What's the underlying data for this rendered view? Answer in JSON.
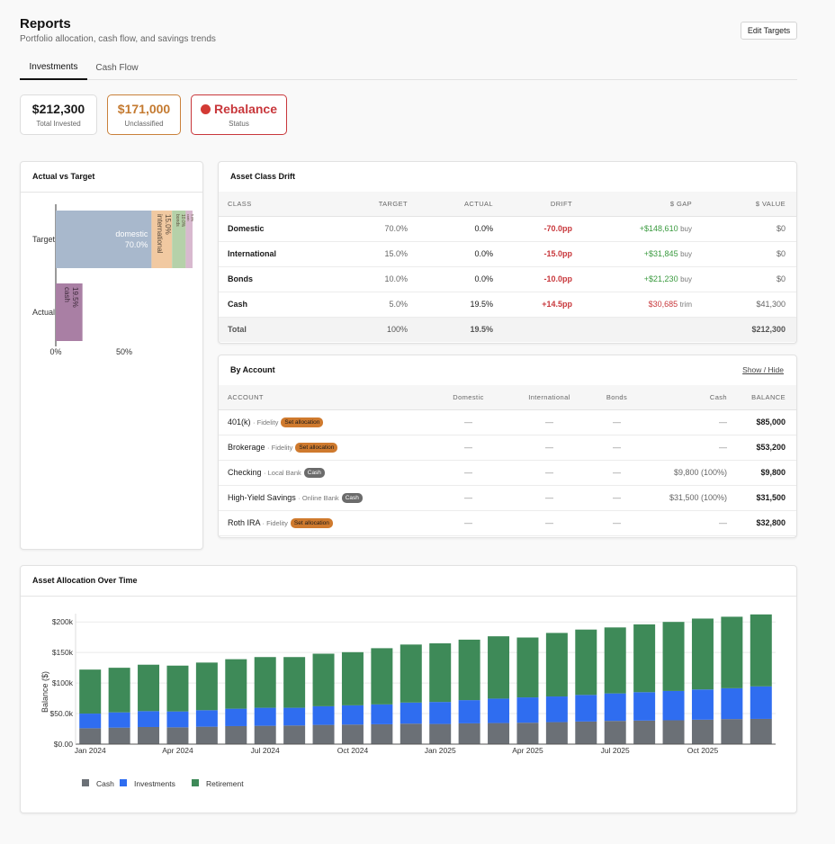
{
  "header": {
    "title": "Reports",
    "subtitle": "Portfolio allocation, cash flow, and savings trends",
    "edit_label": "Edit Targets"
  },
  "tabs": [
    {
      "label": "Investments",
      "active": true
    },
    {
      "label": "Cash Flow",
      "active": false
    }
  ],
  "kpis": [
    {
      "value": "$212,300",
      "label": "Total Invested"
    },
    {
      "value": "$171,000",
      "label": "Unclassified"
    },
    {
      "value": "Rebalance",
      "label": "Status"
    }
  ],
  "actual_vs_target": {
    "title": "Actual vs Target",
    "rows": [
      {
        "label": "Target",
        "segments": [
          {
            "name": "domestic",
            "value": "70.0%",
            "pct": 70.0,
            "color": "#a8b8cc"
          },
          {
            "name": "international",
            "value": "15.0%",
            "pct": 15.0,
            "color": "#f1c9a1"
          },
          {
            "name": "bonds",
            "value": "10.0%",
            "pct": 10.0,
            "color": "#b5d1a9"
          },
          {
            "name": "cash",
            "value": "5.0%",
            "pct": 5.0,
            "color": "#d8b9cf"
          }
        ]
      },
      {
        "label": "Actual",
        "segments": [
          {
            "name": "cash",
            "value": "19.5%",
            "pct": 19.5,
            "color": "#a97fa4"
          }
        ]
      }
    ],
    "ticks": [
      "0%",
      "50%"
    ]
  },
  "drift": {
    "title": "Asset Class Drift",
    "columns": [
      "CLASS",
      "TARGET",
      "ACTUAL",
      "DRIFT",
      "$ GAP",
      "$ VALUE"
    ],
    "rows": [
      {
        "class": "Domestic",
        "target": "70.0%",
        "actual": "0.0%",
        "drift": "-70.0pp",
        "gap": "+$148,610",
        "gap_action": "buy",
        "gap_kind": "buy",
        "value": "$0"
      },
      {
        "class": "International",
        "target": "15.0%",
        "actual": "0.0%",
        "drift": "-15.0pp",
        "gap": "+$31,845",
        "gap_action": "buy",
        "gap_kind": "buy",
        "value": "$0"
      },
      {
        "class": "Bonds",
        "target": "10.0%",
        "actual": "0.0%",
        "drift": "-10.0pp",
        "gap": "+$21,230",
        "gap_action": "buy",
        "gap_kind": "buy",
        "value": "$0"
      },
      {
        "class": "Cash",
        "target": "5.0%",
        "actual": "19.5%",
        "drift": "+14.5pp",
        "gap": "$30,685",
        "gap_action": "trim",
        "gap_kind": "trim",
        "value": "$41,300"
      }
    ],
    "total": {
      "label": "Total",
      "target": "100%",
      "actual": "19.5%",
      "value": "$212,300"
    }
  },
  "by_account": {
    "title": "By Account",
    "toggle_label": "Show / Hide",
    "columns": [
      "ACCOUNT",
      "Domestic",
      "International",
      "Bonds",
      "Cash",
      "BALANCE"
    ],
    "rows": [
      {
        "name": "401(k)",
        "institution": "· Fidelity",
        "badge": "Set allocation",
        "badge_kind": "set",
        "domestic": "—",
        "international": "—",
        "bonds": "—",
        "cash": "—",
        "balance": "$85,000"
      },
      {
        "name": "Brokerage",
        "institution": "· Fidelity",
        "badge": "Set allocation",
        "badge_kind": "set",
        "domestic": "—",
        "international": "—",
        "bonds": "—",
        "cash": "—",
        "balance": "$53,200"
      },
      {
        "name": "Checking",
        "institution": "· Local Bank",
        "badge": "Cash",
        "badge_kind": "cash",
        "domestic": "—",
        "international": "—",
        "bonds": "—",
        "cash": "$9,800 (100%)",
        "balance": "$9,800"
      },
      {
        "name": "High-Yield Savings",
        "institution": "· Online Bank",
        "badge": "Cash",
        "badge_kind": "cash",
        "domestic": "—",
        "international": "—",
        "bonds": "—",
        "cash": "$31,500 (100%)",
        "balance": "$31,500"
      },
      {
        "name": "Roth IRA",
        "institution": "· Fidelity",
        "badge": "Set allocation",
        "badge_kind": "set",
        "domestic": "—",
        "international": "—",
        "bonds": "—",
        "cash": "—",
        "balance": "$32,800"
      }
    ]
  },
  "allocation_over_time": {
    "title": "Asset Allocation Over Time"
  },
  "chart_data": {
    "type": "bar",
    "stacked": true,
    "ylabel": "Balance ($)",
    "ylim": [
      0,
      210000
    ],
    "yticks": [
      {
        "v": 0,
        "label": "$0.00"
      },
      {
        "v": 50000,
        "label": "$50.0k"
      },
      {
        "v": 100000,
        "label": "$100k"
      },
      {
        "v": 150000,
        "label": "$150k"
      },
      {
        "v": 200000,
        "label": "$200k"
      }
    ],
    "xticks": [
      {
        "i": 0,
        "label": "Jan 2024"
      },
      {
        "i": 3,
        "label": "Apr 2024"
      },
      {
        "i": 6,
        "label": "Jul 2024"
      },
      {
        "i": 9,
        "label": "Oct 2024"
      },
      {
        "i": 12,
        "label": "Jan 2025"
      },
      {
        "i": 15,
        "label": "Apr 2025"
      },
      {
        "i": 18,
        "label": "Jul 2025"
      },
      {
        "i": 21,
        "label": "Oct 2025"
      }
    ],
    "categories": [
      "Jan 2024",
      "Feb 2024",
      "Mar 2024",
      "Apr 2024",
      "May 2024",
      "Jun 2024",
      "Jul 2024",
      "Aug 2024",
      "Sep 2024",
      "Oct 2024",
      "Nov 2024",
      "Dec 2024",
      "Jan 2025",
      "Feb 2025",
      "Mar 2025",
      "Apr 2025",
      "May 2025",
      "Jun 2025",
      "Jul 2025",
      "Aug 2025",
      "Sep 2025",
      "Oct 2025",
      "Nov 2025",
      "Dec 2025"
    ],
    "series": [
      {
        "name": "Cash",
        "color": "#6b7076",
        "values": [
          26000,
          27000,
          28000,
          27500,
          28500,
          29500,
          30000,
          30500,
          31500,
          32000,
          32500,
          33500,
          33000,
          34000,
          34500,
          35000,
          36000,
          37000,
          38000,
          38500,
          39000,
          40000,
          41000,
          41300
        ]
      },
      {
        "name": "Investments",
        "color": "#2f6df0",
        "values": [
          24000,
          25000,
          26000,
          26000,
          27000,
          28500,
          29500,
          29000,
          30500,
          31500,
          32500,
          34500,
          36000,
          38000,
          40000,
          41500,
          42000,
          43500,
          45000,
          46500,
          48000,
          49500,
          50500,
          53200
        ]
      },
      {
        "name": "Retirement",
        "color": "#3e8a58",
        "values": [
          72000,
          73000,
          76000,
          75000,
          78000,
          81000,
          83000,
          83000,
          86000,
          87000,
          92000,
          95000,
          96000,
          99000,
          102000,
          98000,
          104000,
          107000,
          108000,
          111000,
          113000,
          116000,
          117000,
          117800
        ]
      }
    ],
    "legend_position": "bottom-left",
    "grid": true
  }
}
